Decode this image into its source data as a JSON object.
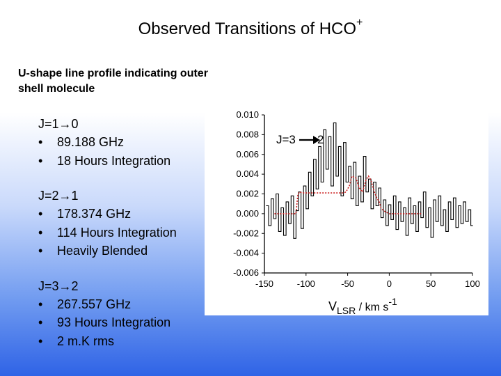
{
  "title": "Observed Transitions of HCO",
  "title_superscript": "+",
  "subtitle": "U-shape line profile indicating outer shell molecule",
  "transitions": [
    {
      "label": "J=1→0",
      "bullets": [
        "89.188 GHz",
        "18 Hours Integration"
      ]
    },
    {
      "label": "J=2→1",
      "bullets": [
        "178.374 GHz",
        "114 Hours Integration",
        "Heavily Blended"
      ]
    },
    {
      "label": "J=3→2",
      "bullets": [
        "267.557 GHz",
        "93 Hours Integration",
        "2 m.K rms"
      ]
    }
  ],
  "bullet_char": "•",
  "chart_data": {
    "type": "line",
    "annotation": "J=3",
    "annotation_target": "2",
    "xlabel_main": "V",
    "xlabel_sub": "LSR",
    "xlabel_unit": " / km s",
    "xlabel_exp": "-1",
    "xlim": [
      -150,
      100
    ],
    "ylim": [
      -0.006,
      0.01
    ],
    "xticks": [
      -150,
      -100,
      -50,
      0,
      50,
      100
    ],
    "yticks": [
      "0.010",
      "0.008",
      "0.006",
      "0.004",
      "0.002",
      "0.000",
      "-0.002",
      "-0.004",
      "-0.006"
    ],
    "grid": false,
    "series": [
      {
        "style": "solid",
        "color": "#000000",
        "x": [
          -148,
          -145,
          -142,
          -139,
          -136,
          -133,
          -130,
          -127,
          -124,
          -121,
          -118,
          -115,
          -112,
          -109,
          -106,
          -103,
          -100,
          -97,
          -94,
          -91,
          -88,
          -85,
          -82,
          -79,
          -76,
          -73,
          -70,
          -67,
          -64,
          -61,
          -58,
          -55,
          -52,
          -49,
          -46,
          -43,
          -40,
          -37,
          -34,
          -31,
          -28,
          -25,
          -22,
          -19,
          -16,
          -13,
          -10,
          -7,
          -4,
          -1,
          2,
          5,
          8,
          11,
          14,
          17,
          20,
          23,
          26,
          29,
          32,
          35,
          38,
          41,
          44,
          47,
          50,
          53,
          56,
          59,
          62,
          65,
          68,
          71,
          74,
          77,
          80,
          83,
          86,
          89,
          92,
          95,
          98
        ],
        "y": [
          0.0008,
          -0.0012,
          0.0015,
          -0.0005,
          0.002,
          -0.0018,
          0.0006,
          -0.0022,
          0.0012,
          -0.001,
          0.0018,
          -0.0025,
          0.0003,
          0.0022,
          -0.0015,
          0.0028,
          0.0005,
          0.0042,
          0.0018,
          0.0055,
          0.0025,
          0.0068,
          0.0032,
          0.0085,
          0.0045,
          0.0078,
          0.0028,
          0.0092,
          0.0038,
          0.0068,
          0.0018,
          0.0072,
          0.0032,
          0.0048,
          0.0015,
          0.0052,
          0.0008,
          0.0038,
          0.0012,
          0.0058,
          0.0022,
          0.0035,
          0.0005,
          0.0032,
          0.0008,
          0.0026,
          -0.0004,
          0.0014,
          -0.0012,
          0.0009,
          -0.0006,
          0.0018,
          -0.0016,
          0.0012,
          -0.0008,
          0.0006,
          -0.0022,
          0.0016,
          -0.001,
          0.0008,
          -0.0018,
          0.0012,
          -0.0004,
          0.0022,
          -0.0014,
          0.0006,
          -0.0024,
          0.0014,
          -0.0008,
          0.0018,
          -0.0012,
          0.0004,
          -0.0018,
          0.0012,
          -0.0006,
          0.0016,
          -0.0014,
          0.0008,
          -0.001,
          0.0012,
          -0.0008,
          0.0004,
          -0.0012
        ]
      },
      {
        "style": "dotted",
        "color": "#cc2222",
        "x": [
          -138,
          -112,
          -110,
          -108,
          -104,
          -100,
          -96,
          -90,
          -85,
          -80,
          -75,
          -70,
          -65,
          -60,
          -55,
          -52,
          -48,
          -45,
          -40,
          -36,
          -32,
          -28,
          -25,
          -22,
          -18,
          -15,
          -12,
          -10,
          -8,
          -5,
          0,
          20,
          40
        ],
        "y": [
          0.0,
          0.0,
          0.0018,
          0.0022,
          0.0021,
          0.0021,
          0.0021,
          0.0021,
          0.0021,
          0.0021,
          0.0021,
          0.0021,
          0.0021,
          0.0021,
          0.0021,
          0.0022,
          0.0028,
          0.0038,
          0.0036,
          0.0026,
          0.0022,
          0.0034,
          0.0038,
          0.0034,
          0.0022,
          0.0016,
          0.0012,
          0.0006,
          0.0004,
          0.0002,
          0.0,
          0.0,
          0.0
        ]
      }
    ]
  }
}
